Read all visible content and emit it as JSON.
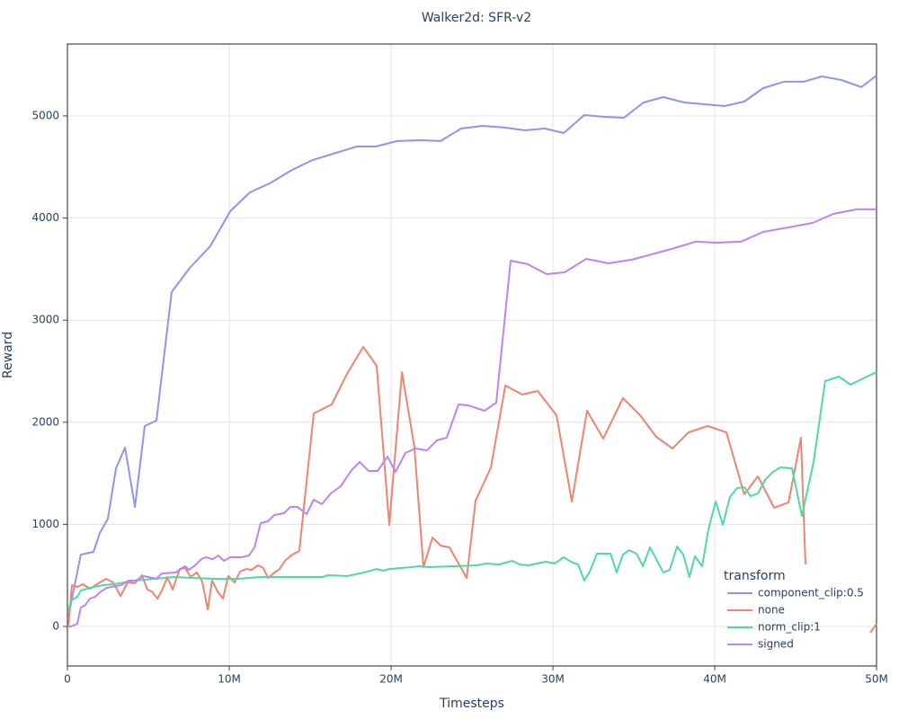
{
  "chart_data": {
    "type": "line",
    "title": "Walker2d: SFR-v2",
    "x_label": "Timesteps",
    "y_label": "Reward",
    "legend_title": "transform",
    "legend_position": "bottom-right",
    "grid": true,
    "xlim": [
      0,
      50000000
    ],
    "xticks": [
      0,
      {
        "value": 10000000,
        "label": "10M"
      },
      {
        "value": 20000000,
        "label": "20M"
      },
      {
        "value": 30000000,
        "label": "30M"
      },
      {
        "value": 40000000,
        "label": "40M"
      },
      {
        "value": 50000000,
        "label": "50M"
      }
    ],
    "ylim": [
      -387,
      5704
    ],
    "yticks": [
      0,
      1000,
      2000,
      3000,
      4000,
      5000
    ],
    "series": [
      {
        "name": "component_clip:0.5",
        "color": "#8f94f0",
        "x": [
          60000,
          830000,
          1610000,
          2000000,
          2500000,
          3000000,
          3560000,
          4170000,
          4780000,
          5500000,
          6440000,
          7560000,
          8830000,
          10060000,
          11280000,
          12500000,
          13890000,
          15170000,
          16610000,
          17890000,
          19060000,
          20390000,
          21830000,
          23060000,
          24330000,
          25670000,
          27000000,
          28280000,
          29500000,
          30670000,
          31940000,
          33170000,
          34390000,
          35610000,
          36830000,
          38110000,
          39390000,
          40610000,
          41830000,
          43000000,
          44280000,
          45500000,
          46610000,
          47830000,
          49060000,
          50000000
        ],
        "values": [
          100,
          704,
          731,
          915,
          1056,
          1549,
          1752,
          1171,
          1963,
          2016,
          3275,
          3512,
          3724,
          4067,
          4252,
          4340,
          4472,
          4569,
          4639,
          4701,
          4701,
          4754,
          4762,
          4754,
          4877,
          4903,
          4886,
          4859,
          4877,
          4833,
          5009,
          4991,
          4982,
          5132,
          5185,
          5132,
          5114,
          5097,
          5141,
          5273,
          5335,
          5335,
          5387,
          5352,
          5282,
          5396
        ]
      },
      {
        "name": "none",
        "color": "#ef8470",
        "x": [
          60000,
          280000,
          610000,
          940000,
          1390000,
          1830000,
          2390000,
          2830000,
          3280000,
          3720000,
          4170000,
          4610000,
          4940000,
          5220000,
          5560000,
          5890000,
          6170000,
          6500000,
          6940000,
          7280000,
          7610000,
          8000000,
          8330000,
          8670000,
          8940000,
          9280000,
          9610000,
          9940000,
          10330000,
          10670000,
          11060000,
          11390000,
          11780000,
          12110000,
          12390000,
          12720000,
          13110000,
          13440000,
          13890000,
          14330000,
          15220000,
          16330000,
          17280000,
          18280000,
          19110000,
          19890000,
          20670000,
          21440000,
          22000000,
          22560000,
          23060000,
          23610000,
          24670000,
          25220000,
          26170000,
          27060000,
          28110000,
          29060000,
          30220000,
          31170000,
          32110000,
          33110000,
          34330000,
          35390000,
          36390000,
          37390000,
          38390000,
          39560000,
          40720000,
          41830000,
          42670000,
          43670000,
          44560000,
          45330000,
          45610000,
          48000000,
          49610000,
          50000000
        ],
        "values": [
          0,
          405,
          387,
          414,
          370,
          414,
          467,
          431,
          299,
          431,
          423,
          502,
          361,
          343,
          273,
          370,
          484,
          361,
          563,
          572,
          484,
          528,
          440,
          167,
          449,
          343,
          273,
          493,
          431,
          537,
          563,
          555,
          599,
          572,
          475,
          519,
          563,
          643,
          704,
          739,
          2086,
          2174,
          2474,
          2738,
          2553,
          995,
          2491,
          1761,
          581,
          871,
          792,
          775,
          475,
          1232,
          1558,
          2359,
          2271,
          2306,
          2069,
          1224,
          2113,
          1840,
          2236,
          2069,
          1857,
          1743,
          1901,
          1963,
          1901,
          1294,
          1470,
          1162,
          1215,
          1849,
          607,
          null,
          -62,
          26
        ]
      },
      {
        "name": "norm_clip:1",
        "color": "#4fd8a8",
        "x": [
          60000,
          220000,
          610000,
          830000,
          1220000,
          1610000,
          2220000,
          2830000,
          3500000,
          4170000,
          5390000,
          6610000,
          7830000,
          9170000,
          10610000,
          11940000,
          14060000,
          15780000,
          16110000,
          17280000,
          18330000,
          19110000,
          19500000,
          19890000,
          21280000,
          21720000,
          22330000,
          23890000,
          25330000,
          25890000,
          26670000,
          27500000,
          27940000,
          28500000,
          29560000,
          30110000,
          30670000,
          31220000,
          31560000,
          31940000,
          32280000,
          32720000,
          33560000,
          33940000,
          34330000,
          34720000,
          35170000,
          35560000,
          36000000,
          36830000,
          37220000,
          37670000,
          38060000,
          38440000,
          38780000,
          39220000,
          39610000,
          40060000,
          40500000,
          40940000,
          41390000,
          41830000,
          42220000,
          42670000,
          43110000,
          43610000,
          44060000,
          44780000,
          45390000,
          46110000,
          46830000,
          47670000,
          48390000,
          49280000,
          50000000
        ],
        "values": [
          150,
          255,
          290,
          352,
          370,
          387,
          405,
          414,
          431,
          449,
          467,
          484,
          475,
          467,
          467,
          484,
          484,
          484,
          502,
          493,
          528,
          563,
          546,
          563,
          581,
          590,
          581,
          590,
          599,
          616,
          607,
          643,
          607,
          599,
          634,
          616,
          678,
          625,
          607,
          449,
          537,
          713,
          713,
          528,
          704,
          748,
          713,
          590,
          775,
          528,
          555,
          783,
          704,
          484,
          687,
          590,
          951,
          1224,
          995,
          1268,
          1356,
          1364,
          1276,
          1303,
          1435,
          1514,
          1558,
          1549,
          1083,
          1611,
          2403,
          2447,
          2368,
          2438,
          2491
        ]
      },
      {
        "name": "signed",
        "color": "#bd84f5",
        "x": [
          0,
          220000,
          610000,
          830000,
          1110000,
          1390000,
          1720000,
          2000000,
          2440000,
          3330000,
          3780000,
          4220000,
          4720000,
          5500000,
          5830000,
          6670000,
          7280000,
          7500000,
          7830000,
          8280000,
          8560000,
          9000000,
          9330000,
          9670000,
          10060000,
          10780000,
          11220000,
          11560000,
          11940000,
          12390000,
          12780000,
          13390000,
          13780000,
          14220000,
          14780000,
          15220000,
          15720000,
          16280000,
          16890000,
          17560000,
          18060000,
          18610000,
          19170000,
          19780000,
          20280000,
          20890000,
          21500000,
          22220000,
          22830000,
          23440000,
          24170000,
          24780000,
          25780000,
          26500000,
          27390000,
          28440000,
          29610000,
          30720000,
          32060000,
          33440000,
          34890000,
          36110000,
          37330000,
          38830000,
          40110000,
          41610000,
          43000000,
          44560000,
          46060000,
          47330000,
          48780000,
          50000000
        ],
        "values": [
          0,
          0,
          26,
          185,
          211,
          273,
          290,
          335,
          379,
          405,
          449,
          449,
          493,
          467,
          519,
          528,
          590,
          555,
          590,
          660,
          678,
          660,
          695,
          643,
          678,
          678,
          695,
          775,
          1012,
          1030,
          1092,
          1109,
          1171,
          1171,
          1100,
          1241,
          1197,
          1303,
          1373,
          1532,
          1611,
          1523,
          1523,
          1664,
          1514,
          1699,
          1743,
          1725,
          1822,
          1849,
          2174,
          2165,
          2113,
          2192,
          3583,
          3548,
          3451,
          3468,
          3600,
          3556,
          3592,
          3644,
          3697,
          3768,
          3759,
          3768,
          3864,
          3908,
          3952,
          4040,
          4085,
          4085
        ]
      }
    ]
  }
}
